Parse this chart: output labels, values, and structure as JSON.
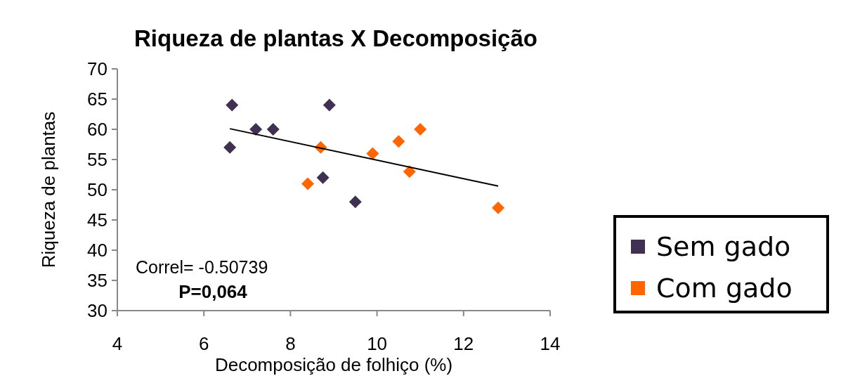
{
  "chart_data": {
    "type": "scatter",
    "title": "Riqueza de plantas X Decomposição",
    "xlabel": "Decomposição de folhiço (%)",
    "ylabel": "Riqueza de plantas",
    "xlim": [
      4,
      14
    ],
    "xticks": [
      4,
      6,
      8,
      10,
      12,
      14
    ],
    "ylim": [
      30,
      70
    ],
    "yticks": [
      30,
      35,
      40,
      45,
      50,
      55,
      60,
      65,
      70
    ],
    "grid": false,
    "legend": "right",
    "marker": "diamond",
    "series": [
      {
        "name": "Sem gado",
        "color": "#403152",
        "x": [
          6.65,
          7.2,
          7.6,
          6.6,
          8.9,
          8.75,
          9.5
        ],
        "values": [
          64,
          60,
          60,
          57,
          64,
          52,
          48
        ]
      },
      {
        "name": "Com gado",
        "color": "#ff6600",
        "x": [
          8.4,
          8.7,
          9.9,
          10.5,
          11.0,
          10.75,
          12.8
        ],
        "values": [
          51,
          57,
          56,
          58,
          60,
          53,
          47
        ]
      },
      {
        "type": "line",
        "color": "#000000",
        "marker": "none",
        "x": [
          6.6,
          12.8
        ],
        "values": [
          60.1,
          50.6
        ]
      }
    ],
    "annotations": [
      "Correl= -0.50739",
      "P=0,064"
    ]
  }
}
